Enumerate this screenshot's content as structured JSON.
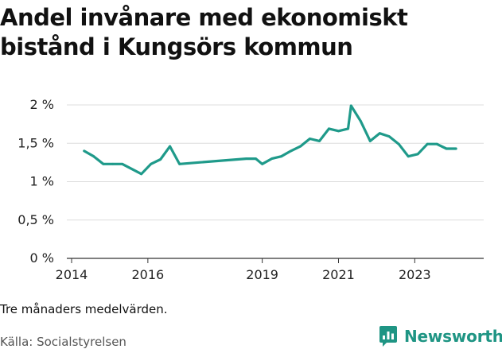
{
  "title": "Andel invånare med ekonomiskt bistånd i Kungsörs kommun",
  "note": "Tre månaders medelvärden.",
  "source": "Källa: Socialstyrelsen",
  "brand": {
    "name": "Newsworthy",
    "icon": "bar-chart-speech-bubble-icon",
    "color": "#1f9584"
  },
  "chart_data": {
    "type": "line",
    "title": "Andel invånare med ekonomiskt bistånd i Kungsörs kommun",
    "xlabel": "",
    "ylabel": "",
    "ylim": [
      0,
      2
    ],
    "xlim": [
      2014,
      2024.85
    ],
    "grid": true,
    "line_color": "#1f9a8a",
    "grid_color": "#dddddd",
    "yticks": [
      {
        "value": 0,
        "label": "0 %"
      },
      {
        "value": 0.5,
        "label": "0,5 %"
      },
      {
        "value": 1,
        "label": "1 %"
      },
      {
        "value": 1.5,
        "label": "1,5 %"
      },
      {
        "value": 2,
        "label": "2 %"
      }
    ],
    "xticks": [
      {
        "value": 2014,
        "label": "2014"
      },
      {
        "value": 2016,
        "label": "2016"
      },
      {
        "value": 2019,
        "label": "2019"
      },
      {
        "value": 2021,
        "label": "2021"
      },
      {
        "value": 2023,
        "label": "2023"
      }
    ],
    "series": [
      {
        "x": [
          2014.33,
          2014.58,
          2014.83,
          2015.08,
          2015.33,
          2015.83,
          2016.08,
          2016.33,
          2016.58,
          2016.83,
          2018.58,
          2018.83,
          2019.0,
          2019.25,
          2019.5,
          2019.75,
          2020.0,
          2020.25,
          2020.5,
          2020.75,
          2021.0,
          2021.25,
          2021.33,
          2021.58,
          2021.83,
          2022.08,
          2022.33,
          2022.58,
          2022.83,
          2023.08,
          2023.33,
          2023.58,
          2023.83,
          2024.08
        ],
        "values": [
          1.4,
          1.33,
          1.23,
          1.23,
          1.23,
          1.1,
          1.23,
          1.29,
          1.46,
          1.23,
          1.3,
          1.3,
          1.23,
          1.3,
          1.33,
          1.4,
          1.46,
          1.56,
          1.53,
          1.69,
          1.66,
          1.69,
          1.99,
          1.79,
          1.53,
          1.63,
          1.59,
          1.49,
          1.33,
          1.36,
          1.49,
          1.49,
          1.43,
          1.43
        ]
      }
    ]
  }
}
